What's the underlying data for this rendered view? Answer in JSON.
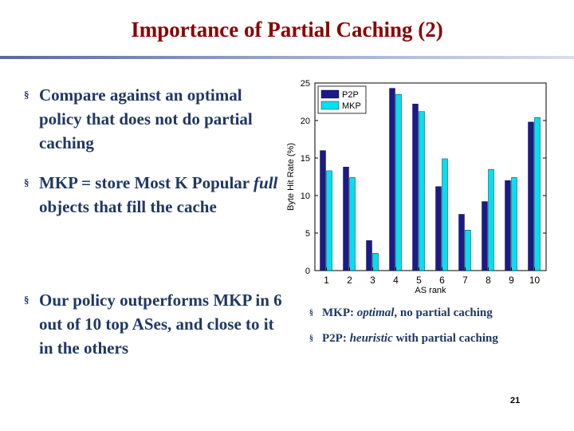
{
  "slide": {
    "title": "Importance of Partial Caching (2)",
    "page_number": "21"
  },
  "bullets": [
    {
      "marker": "§",
      "text": "Compare against an optimal policy that does not do partial caching"
    },
    {
      "marker": "§",
      "pre": "MKP = store Most K Popular ",
      "emph": "full",
      "post": " objects that fill the cache"
    },
    {
      "marker": "§",
      "text": "Our policy outperforms MKP in 6 out of 10 top ASes, and close to it in the others"
    }
  ],
  "notes": [
    {
      "marker": "§",
      "pre": "MKP: ",
      "emph": "optimal",
      "post": ", no partial caching"
    },
    {
      "marker": "§",
      "pre": "P2P: ",
      "emph": "heuristic",
      "post": " with partial caching"
    }
  ],
  "chart_data": {
    "type": "bar",
    "xlabel": "AS rank",
    "ylabel": "Byte Hit Rate (%)",
    "categories": [
      "1",
      "2",
      "3",
      "4",
      "5",
      "6",
      "7",
      "8",
      "9",
      "10"
    ],
    "ylim": [
      0,
      25
    ],
    "yticks": [
      "0",
      "5",
      "10",
      "15",
      "20",
      "25"
    ],
    "grid": false,
    "legend": "top-left",
    "series": [
      {
        "name": "P2P",
        "color": "#1a1a8c",
        "values": [
          16,
          13.8,
          4,
          24.3,
          22.2,
          11.2,
          7.5,
          9.2,
          12,
          19.8
        ]
      },
      {
        "name": "MKP",
        "color": "#00e0f0",
        "values": [
          13.3,
          12.4,
          2.3,
          23.5,
          21.2,
          14.9,
          5.4,
          13.5,
          12.4,
          20.4
        ]
      }
    ]
  }
}
